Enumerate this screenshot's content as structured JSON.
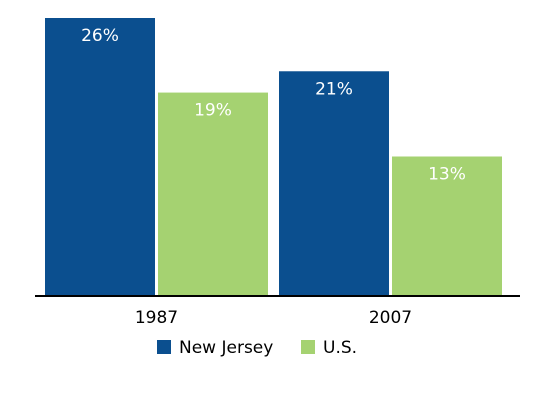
{
  "chart_data": {
    "type": "bar",
    "categories": [
      "1987",
      "2007"
    ],
    "series": [
      {
        "name": "New Jersey",
        "color": "#0b4f8f",
        "values": [
          26,
          21
        ],
        "value_labels": [
          "26%",
          "21%"
        ]
      },
      {
        "name": "U.S.",
        "color": "#a5d271",
        "values": [
          19,
          13
        ],
        "value_labels": [
          "19%",
          "13%"
        ]
      }
    ],
    "legend": "bottom"
  }
}
